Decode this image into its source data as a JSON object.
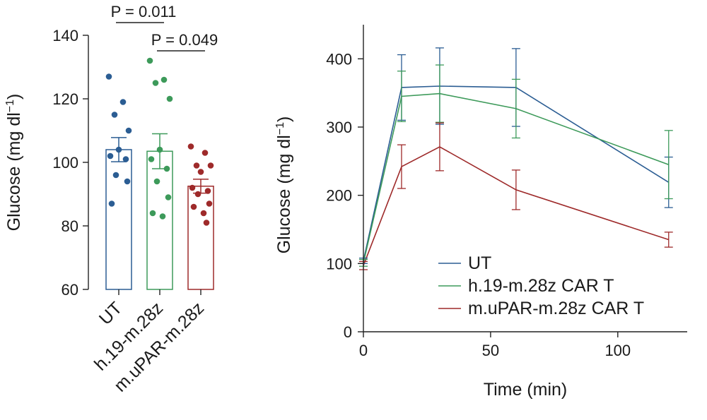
{
  "colors": {
    "UT": "#2b5d93",
    "h19": "#3d9a5a",
    "uPAR": "#9e2a2a",
    "axis": "#222222"
  },
  "chart_data": [
    {
      "type": "bar",
      "ylabel": "Glucose (mg dl",
      "ylabel_sup": "−1",
      "ylim": [
        60,
        140
      ],
      "yticks": [
        60,
        80,
        100,
        120,
        140
      ],
      "categories": [
        "UT",
        "h.19-m.28z",
        "m.uPAR-m.28z"
      ],
      "series": [
        {
          "name": "UT",
          "color_key": "UT",
          "mean": 104,
          "sem": 3.8,
          "points": [
            127,
            119,
            115,
            110,
            104,
            102,
            101,
            96,
            94,
            87
          ]
        },
        {
          "name": "h.19-m.28z",
          "color_key": "h19",
          "mean": 103.5,
          "sem": 5.5,
          "points": [
            132,
            126,
            125,
            120,
            104,
            101,
            98,
            94,
            89,
            84,
            83
          ]
        },
        {
          "name": "m.uPAR-m.28z",
          "color_key": "uPAR",
          "mean": 92.5,
          "sem": 2.2,
          "points": [
            105,
            103,
            99,
            99,
            97,
            92,
            91,
            90,
            87,
            86,
            84,
            81
          ]
        }
      ],
      "annotations": [
        {
          "text": "P = 0.011",
          "from": 0,
          "to": 1,
          "level": 1
        },
        {
          "text": "P = 0.049",
          "from": 1,
          "to": 2,
          "level": 0
        }
      ]
    },
    {
      "type": "line",
      "xlabel": "Time (min)",
      "ylabel": "Glucose (mg dl",
      "ylabel_sup": "−1",
      "xlim": [
        0,
        125
      ],
      "ylim": [
        0,
        450
      ],
      "xticks": [
        0,
        50,
        100
      ],
      "yticks": [
        0,
        100,
        200,
        300,
        400
      ],
      "x": [
        0,
        15,
        30,
        60,
        120
      ],
      "series": [
        {
          "name": "UT",
          "color_key": "UT",
          "values": [
            104,
            358,
            360,
            358,
            219
          ],
          "errors": [
            4,
            48,
            56,
            57,
            37
          ]
        },
        {
          "name": "h.19-m.28z CAR T",
          "color_key": "h19",
          "values": [
            101,
            345,
            349,
            327,
            245
          ],
          "errors": [
            5,
            37,
            42,
            43,
            50
          ]
        },
        {
          "name": "m.uPAR-m.28z CAR T",
          "color_key": "uPAR",
          "values": [
            97,
            242,
            271,
            208,
            135
          ],
          "errors": [
            6,
            32,
            35,
            29,
            11
          ]
        }
      ],
      "legend": [
        "UT",
        "h.19-m.28z CAR T",
        "m.uPAR-m.28z CAR T"
      ],
      "legend_position": "bottom-left"
    }
  ]
}
